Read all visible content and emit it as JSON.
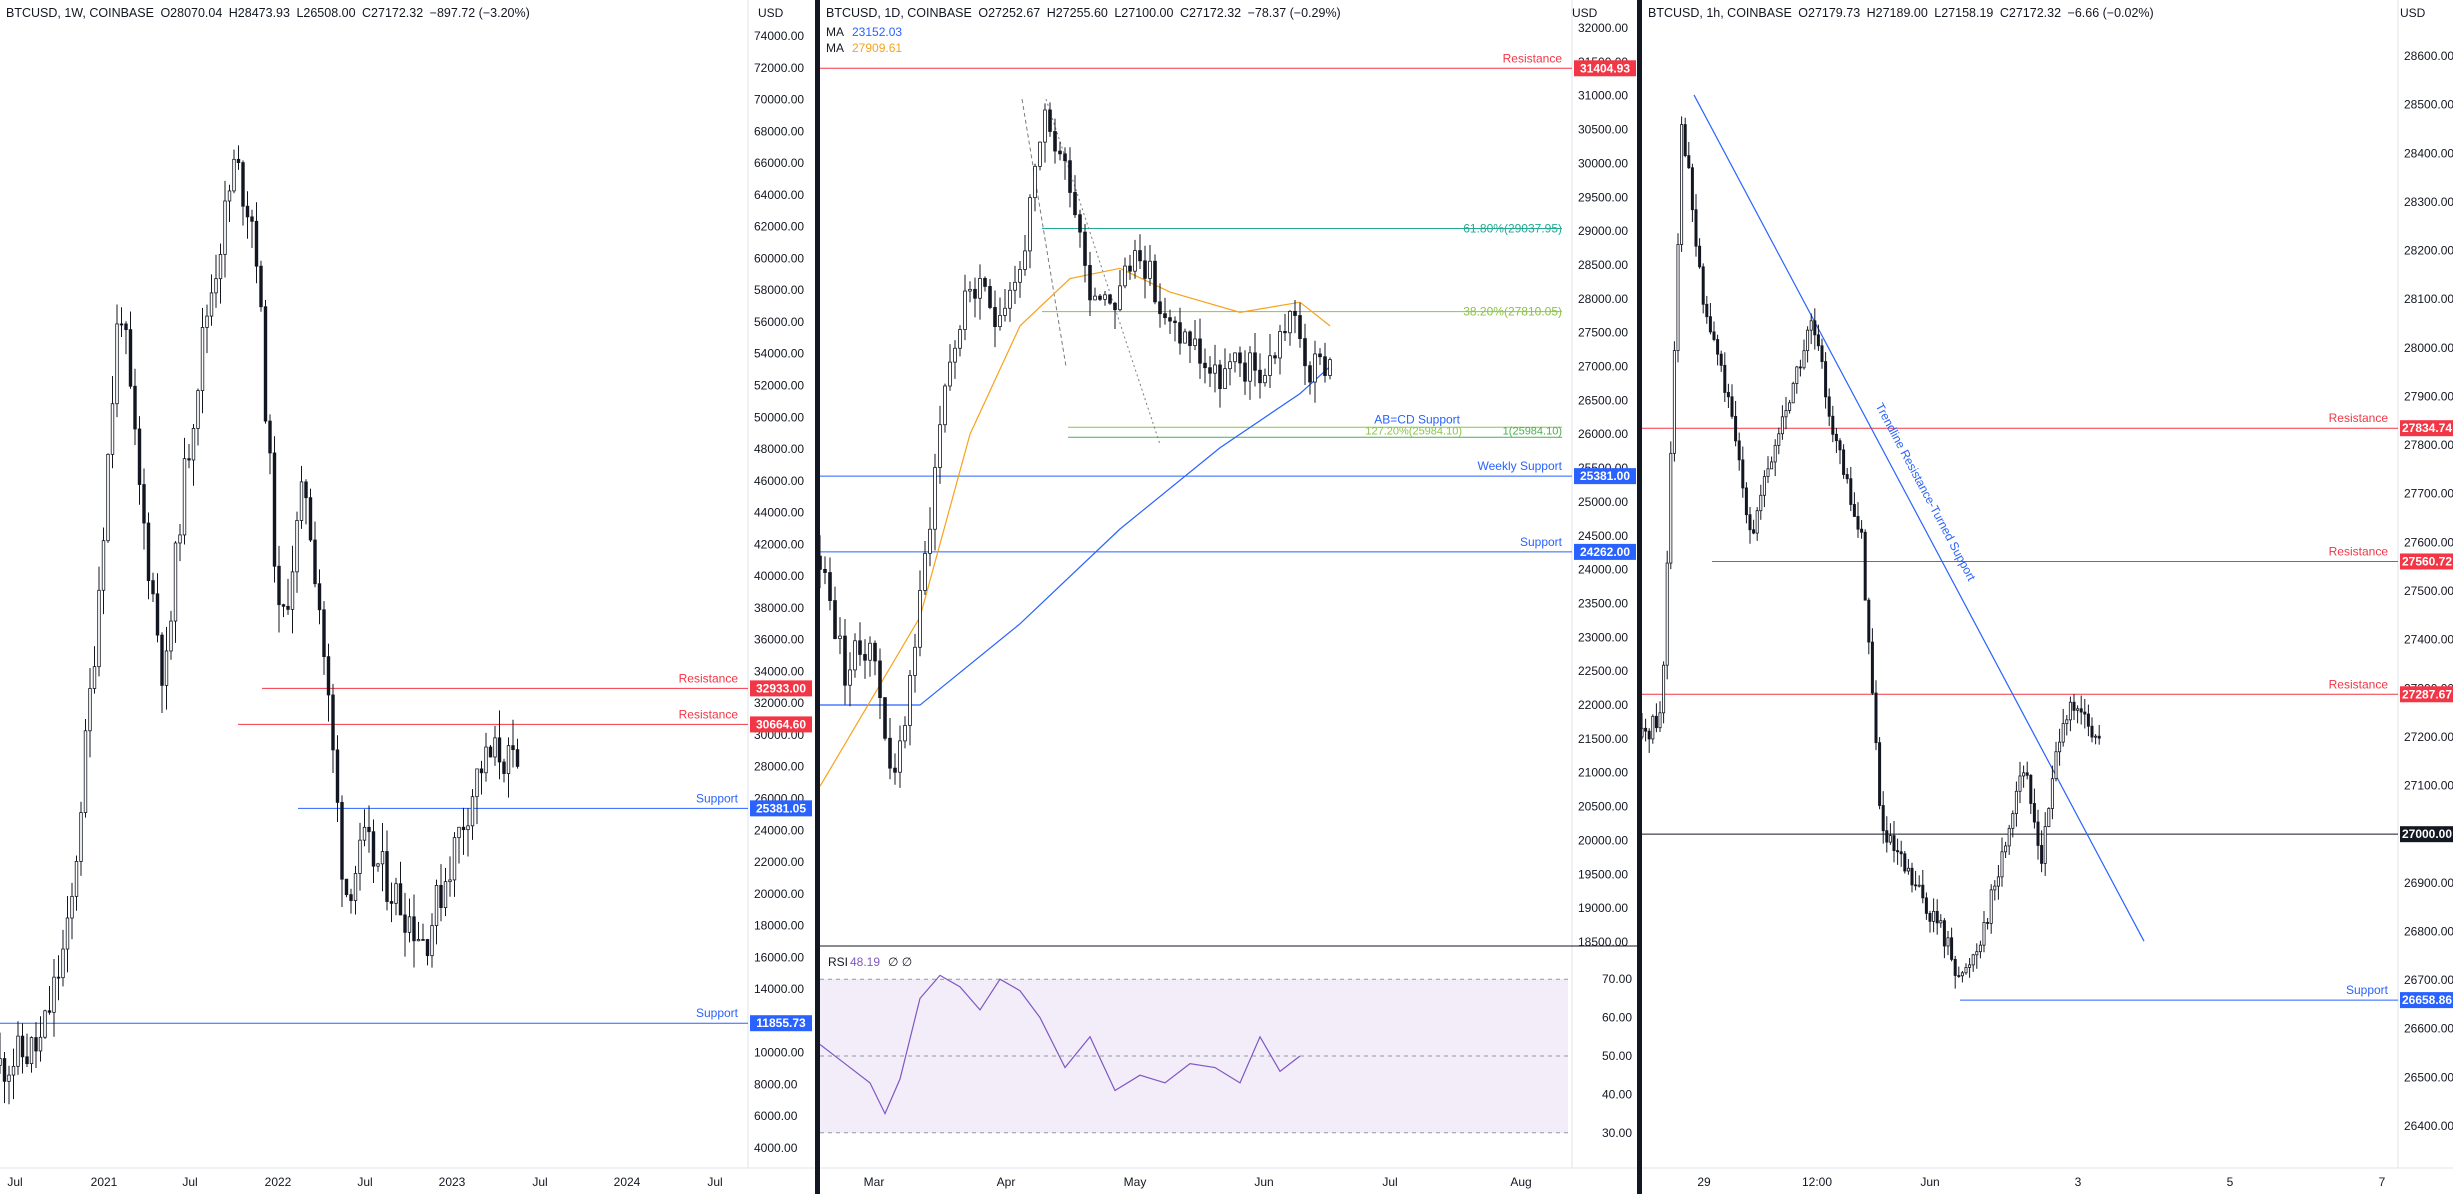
{
  "panels": [
    {
      "header": {
        "symbol": "BTCUSD, 1W, COINBASE",
        "open": "O28070.04",
        "high": "H28473.93",
        "low": "L26508.00",
        "close": "C27172.32",
        "change": "−897.72 (−3.20%)"
      },
      "currency": "USD",
      "y_ticks": [
        "74000.00",
        "72000.00",
        "70000.00",
        "68000.00",
        "66000.00",
        "64000.00",
        "62000.00",
        "60000.00",
        "58000.00",
        "56000.00",
        "54000.00",
        "52000.00",
        "50000.00",
        "48000.00",
        "46000.00",
        "44000.00",
        "42000.00",
        "40000.00",
        "38000.00",
        "36000.00",
        "34000.00",
        "32000.00",
        "30000.00",
        "28000.00",
        "26000.00",
        "24000.00",
        "22000.00",
        "20000.00",
        "18000.00",
        "16000.00",
        "14000.00",
        "12000.00",
        "10000.00",
        "8000.00",
        "6000.00",
        "4000.00"
      ],
      "x_ticks": [
        "Jul",
        "2021",
        "Jul",
        "2022",
        "Jul",
        "2023",
        "Jul",
        "2024",
        "Jul"
      ],
      "levels": [
        {
          "label": "Resistance",
          "value": "32933.00",
          "color": "#f23645"
        },
        {
          "label": "Resistance",
          "value": "30664.60",
          "color": "#f23645"
        },
        {
          "label": "Support",
          "value": "25381.05",
          "color": "#2962ff"
        },
        {
          "label": "Support",
          "value": "11855.73",
          "color": "#2962ff"
        }
      ]
    },
    {
      "header": {
        "symbol": "BTCUSD, 1D, COINBASE",
        "open": "O27252.67",
        "high": "H27255.60",
        "low": "L27100.00",
        "close": "C27172.32",
        "change": "−78.37 (−0.29%)"
      },
      "currency": "USD",
      "ma": [
        {
          "name": "MA",
          "value": "23152.03",
          "color": "#2962ff"
        },
        {
          "name": "MA",
          "value": "27909.61",
          "color": "#f7a21b"
        }
      ],
      "y_ticks": [
        "32000.00",
        "31500.00",
        "31000.00",
        "30500.00",
        "30000.00",
        "29500.00",
        "29000.00",
        "28500.00",
        "28000.00",
        "27500.00",
        "27000.00",
        "26500.00",
        "26000.00",
        "25500.00",
        "25000.00",
        "24500.00",
        "24000.00",
        "23500.00",
        "23000.00",
        "22500.00",
        "22000.00",
        "21500.00",
        "21000.00",
        "20500.00",
        "20000.00",
        "19500.00",
        "19000.00",
        "18500.00"
      ],
      "x_ticks": [
        "Mar",
        "Apr",
        "May",
        "Jun",
        "Jul",
        "Aug"
      ],
      "levels": [
        {
          "label": "Resistance",
          "value": "31404.93",
          "color": "#f23645"
        },
        {
          "label": "Weekly Support",
          "value": "25381.00",
          "color": "#2962ff"
        },
        {
          "label": "Support",
          "value": "24262.00",
          "color": "#2962ff"
        }
      ],
      "fib": [
        {
          "label": "61.80%(29037.95)",
          "color": "#22ab94"
        },
        {
          "label": "38.20%(27810.05)",
          "color": "#8bc34a"
        }
      ],
      "abcd": {
        "label": "AB=CD Support",
        "fib1": "127.20%(25984.10)",
        "fib2": "1(25984.10)"
      },
      "rsi": {
        "label": "RSI",
        "value": "48.19",
        "extra": "∅ ∅",
        "ticks": [
          "70.00",
          "60.00",
          "50.00",
          "40.00",
          "30.00"
        ]
      }
    },
    {
      "header": {
        "symbol": "BTCUSD, 1h, COINBASE",
        "open": "O27179.73",
        "high": "H27189.00",
        "low": "L27158.19",
        "close": "C27172.32",
        "change": "−6.66 (−0.02%)"
      },
      "currency": "USD",
      "y_ticks": [
        "28600.00",
        "28500.00",
        "28400.00",
        "28300.00",
        "28200.00",
        "28100.00",
        "28000.00",
        "27900.00",
        "27800.00",
        "27700.00",
        "27600.00",
        "27500.00",
        "27400.00",
        "27300.00",
        "27200.00",
        "27100.00",
        "27000.00",
        "26900.00",
        "26800.00",
        "26700.00",
        "26600.00",
        "26500.00",
        "26400.00"
      ],
      "x_ticks": [
        "29",
        "12:00",
        "Jun",
        "3",
        "5",
        "7"
      ],
      "levels": [
        {
          "label": "Resistance",
          "value": "27834.74",
          "color": "#f23645"
        },
        {
          "label": "Resistance",
          "value": "27560.72",
          "color": "#f23645"
        },
        {
          "label": "Resistance",
          "value": "27287.67",
          "color": "#f23645"
        },
        {
          "label": "",
          "value": "27000.00",
          "color": "#131722"
        },
        {
          "label": "Support",
          "value": "26658.86",
          "color": "#2962ff"
        }
      ],
      "trendline": "Trendline Resistance-Turned Support"
    }
  ],
  "chart_data": [
    {
      "type": "candlestick",
      "timeframe": "1W",
      "ylim": [
        4000,
        74000
      ],
      "path": [
        [
          0,
          9200
        ],
        [
          40,
          10400
        ],
        [
          70,
          18000
        ],
        [
          95,
          36000
        ],
        [
          120,
          58000
        ],
        [
          140,
          45000
        ],
        [
          165,
          33000
        ],
        [
          180,
          44000
        ],
        [
          205,
          56000
        ],
        [
          235,
          66000
        ],
        [
          255,
          62000
        ],
        [
          280,
          36000
        ],
        [
          305,
          46000
        ],
        [
          320,
          38000
        ],
        [
          345,
          20000
        ],
        [
          365,
          23000
        ],
        [
          395,
          20000
        ],
        [
          425,
          17000
        ],
        [
          455,
          23000
        ],
        [
          480,
          28000
        ],
        [
          500,
          29000
        ],
        [
          520,
          27200
        ]
      ],
      "levels": [
        32933,
        30664.6,
        25381.05,
        11855.73
      ]
    },
    {
      "type": "candlestick",
      "timeframe": "1D",
      "ylim": [
        18500,
        32000
      ],
      "path": [
        [
          0,
          24200
        ],
        [
          25,
          22500
        ],
        [
          50,
          23000
        ],
        [
          75,
          20800
        ],
        [
          100,
          23500
        ],
        [
          125,
          26800
        ],
        [
          150,
          28200
        ],
        [
          175,
          27800
        ],
        [
          200,
          28400
        ],
        [
          225,
          30600
        ],
        [
          250,
          29800
        ],
        [
          270,
          28200
        ],
        [
          295,
          28000
        ],
        [
          320,
          28800
        ],
        [
          345,
          27600
        ],
        [
          370,
          27400
        ],
        [
          395,
          26800
        ],
        [
          420,
          27000
        ],
        [
          445,
          26900
        ],
        [
          470,
          27800
        ],
        [
          490,
          26900
        ],
        [
          510,
          27100
        ]
      ],
      "ma_slow": [
        [
          0,
          22000
        ],
        [
          100,
          22000
        ],
        [
          200,
          23200
        ],
        [
          300,
          24600
        ],
        [
          400,
          25800
        ],
        [
          480,
          26600
        ],
        [
          510,
          27000
        ]
      ],
      "ma_fast": [
        [
          0,
          20800
        ],
        [
          100,
          23300
        ],
        [
          150,
          26000
        ],
        [
          200,
          27600
        ],
        [
          250,
          28300
        ],
        [
          300,
          28450
        ],
        [
          350,
          28100
        ],
        [
          420,
          27800
        ],
        [
          480,
          27950
        ],
        [
          510,
          27600
        ]
      ],
      "levels": [
        31404.93,
        25381,
        24262
      ],
      "fib": [
        29037.95,
        27810.05,
        25984.1
      ],
      "rsi": {
        "ylim": [
          25,
          75
        ],
        "path": [
          [
            0,
            53
          ],
          [
            25,
            48
          ],
          [
            50,
            43
          ],
          [
            65,
            35
          ],
          [
            80,
            44
          ],
          [
            100,
            65
          ],
          [
            120,
            71
          ],
          [
            140,
            68
          ],
          [
            160,
            62
          ],
          [
            180,
            70
          ],
          [
            200,
            67
          ],
          [
            220,
            60
          ],
          [
            245,
            47
          ],
          [
            270,
            55
          ],
          [
            295,
            41
          ],
          [
            320,
            45
          ],
          [
            345,
            43
          ],
          [
            370,
            48
          ],
          [
            395,
            47
          ],
          [
            420,
            43
          ],
          [
            440,
            55
          ],
          [
            460,
            46
          ],
          [
            480,
            50
          ]
        ]
      }
    },
    {
      "type": "candlestick",
      "timeframe": "1h",
      "ylim": [
        26350,
        28650
      ],
      "path": [
        [
          0,
          27200
        ],
        [
          20,
          27250
        ],
        [
          40,
          28480
        ],
        [
          60,
          28100
        ],
        [
          80,
          27950
        ],
        [
          110,
          27620
        ],
        [
          140,
          27850
        ],
        [
          170,
          28050
        ],
        [
          200,
          27750
        ],
        [
          220,
          27600
        ],
        [
          240,
          27000
        ],
        [
          270,
          26900
        ],
        [
          300,
          26800
        ],
        [
          320,
          26700
        ],
        [
          340,
          26800
        ],
        [
          360,
          26950
        ],
        [
          380,
          27150
        ],
        [
          400,
          26950
        ],
        [
          420,
          27250
        ],
        [
          440,
          27240
        ],
        [
          460,
          27170
        ]
      ],
      "levels": [
        27834.74,
        27560.72,
        27287.67,
        27000,
        26658.86
      ],
      "trendline": [
        [
          55,
          28520
        ],
        [
          480,
          26780
        ]
      ]
    }
  ]
}
